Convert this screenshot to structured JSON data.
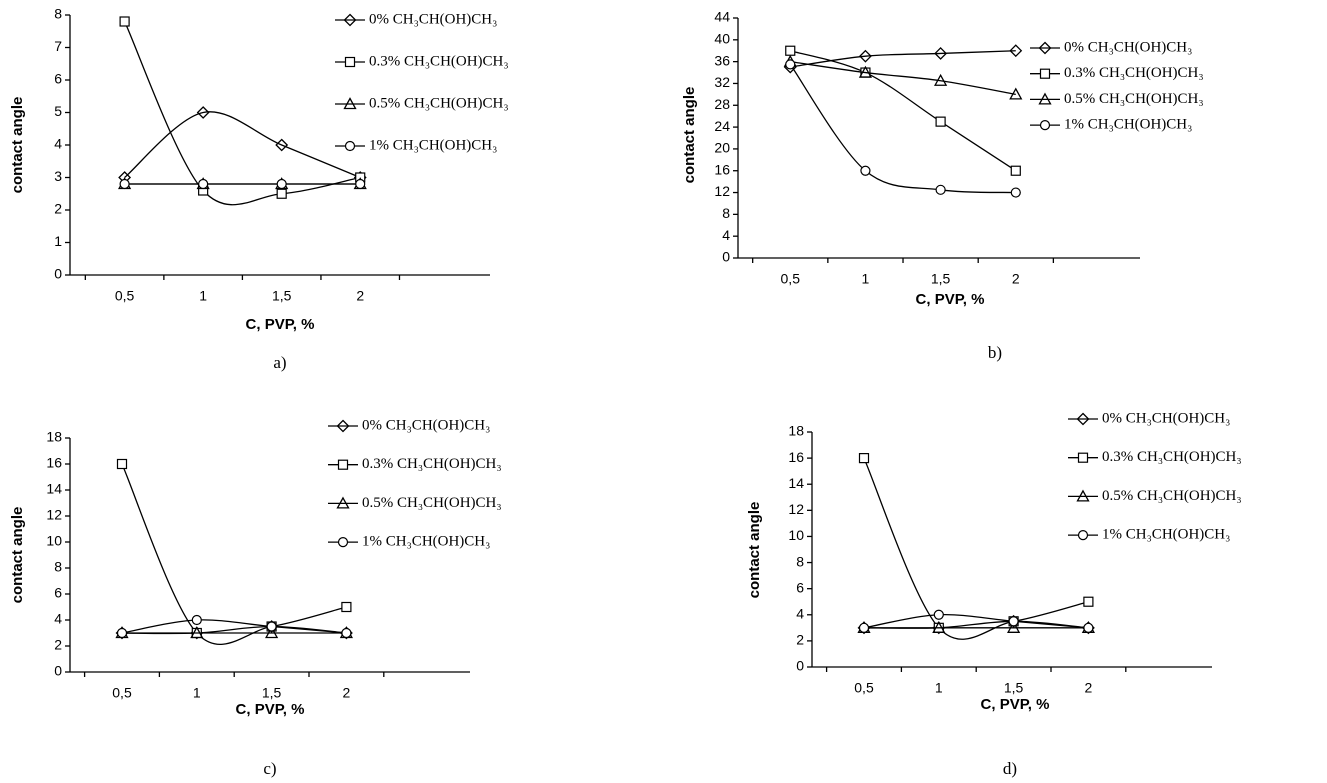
{
  "chart_data": [
    {
      "type": "line",
      "caption": "a)",
      "y_label": "contact angle",
      "x_label": "C, PVP, %",
      "categories": [
        "0,5",
        "1",
        "1,5",
        "2"
      ],
      "ylim": [
        0,
        8
      ],
      "yticks": [
        0,
        1,
        2,
        3,
        4,
        5,
        6,
        7,
        8
      ],
      "legend": "right",
      "smooth": true,
      "series": [
        {
          "name": "0% CH₃CH(OH)CH₃",
          "color": "#000000",
          "marker": "diamond",
          "values": [
            3,
            5,
            4,
            3
          ]
        },
        {
          "name": "0.3% CH₃CH(OH)CH₃",
          "color": "#000000",
          "marker": "square",
          "values": [
            7.8,
            2.6,
            2.5,
            3
          ]
        },
        {
          "name": "0.5% CH₃CH(OH)CH₃",
          "color": "#000000",
          "marker": "triangle",
          "values": [
            2.8,
            2.8,
            2.8,
            2.8
          ]
        },
        {
          "name": "1% CH₃CH(OH)CH₃",
          "color": "#000000",
          "marker": "circle",
          "values": [
            2.8,
            2.8,
            2.8,
            2.8
          ]
        }
      ]
    },
    {
      "type": "line",
      "caption": "b)",
      "y_label": "contact angle",
      "x_label": "C, PVP, %",
      "categories": [
        "0,5",
        "1",
        "1,5",
        "2"
      ],
      "ylim": [
        0,
        44
      ],
      "yticks": [
        0,
        4,
        8,
        12,
        16,
        20,
        24,
        28,
        32,
        36,
        40,
        44
      ],
      "legend": "right",
      "smooth": true,
      "series": [
        {
          "name": "0% CH₃CH(OH)CH₃",
          "color": "#000000",
          "marker": "diamond",
          "values": [
            35,
            37,
            37.5,
            38
          ]
        },
        {
          "name": "0.3% CH₃CH(OH)CH₃",
          "color": "#000000",
          "marker": "square",
          "values": [
            38,
            34,
            25,
            16
          ]
        },
        {
          "name": "0.5% CH₃CH(OH)CH₃",
          "color": "#000000",
          "marker": "triangle",
          "values": [
            36,
            34,
            32.5,
            30
          ]
        },
        {
          "name": "1% CH₃CH(OH)CH₃",
          "color": "#000000",
          "marker": "circle",
          "values": [
            35.5,
            16,
            12.5,
            12
          ]
        }
      ]
    },
    {
      "type": "line",
      "caption": "c)",
      "y_label": "contact angle",
      "x_label": "C, PVP, %",
      "categories": [
        "0,5",
        "1",
        "1,5",
        "2"
      ],
      "ylim": [
        0,
        18
      ],
      "yticks": [
        0,
        2,
        4,
        6,
        8,
        10,
        12,
        14,
        16,
        18
      ],
      "legend": "right",
      "smooth": true,
      "series": [
        {
          "name": "0% CH₃CH(OH)CH₃",
          "color": "#000000",
          "marker": "diamond",
          "values": [
            3,
            3,
            3.5,
            3
          ]
        },
        {
          "name": "0.3% CH₃CH(OH)CH₃",
          "color": "#000000",
          "marker": "square",
          "values": [
            16,
            3,
            3.5,
            5
          ]
        },
        {
          "name": "0.5% CH₃CH(OH)CH₃",
          "color": "#000000",
          "marker": "triangle",
          "values": [
            3,
            3,
            3,
            3
          ]
        },
        {
          "name": "1% CH₃CH(OH)CH₃",
          "color": "#000000",
          "marker": "circle",
          "values": [
            3,
            4,
            3.5,
            3
          ]
        }
      ]
    },
    {
      "type": "line",
      "caption": "d)",
      "y_label": "contact angle",
      "x_label": "C, PVP, %",
      "categories": [
        "0,5",
        "1",
        "1,5",
        "2"
      ],
      "ylim": [
        0,
        18
      ],
      "yticks": [
        0,
        2,
        4,
        6,
        8,
        10,
        12,
        14,
        16,
        18
      ],
      "legend": "right",
      "smooth": true,
      "series": [
        {
          "name": "0% CH₃CH(OH)CH₃",
          "color": "#000000",
          "marker": "diamond",
          "values": [
            3,
            3,
            3.5,
            3
          ]
        },
        {
          "name": "0.3% CH₃CH(OH)CH₃",
          "color": "#000000",
          "marker": "square",
          "values": [
            16,
            3,
            3.5,
            5
          ]
        },
        {
          "name": "0.5% CH₃CH(OH)CH₃",
          "color": "#000000",
          "marker": "triangle",
          "values": [
            3,
            3,
            3,
            3
          ]
        },
        {
          "name": "1% CH₃CH(OH)CH₃",
          "color": "#000000",
          "marker": "circle",
          "values": [
            3,
            4,
            3.5,
            3
          ]
        }
      ]
    }
  ]
}
